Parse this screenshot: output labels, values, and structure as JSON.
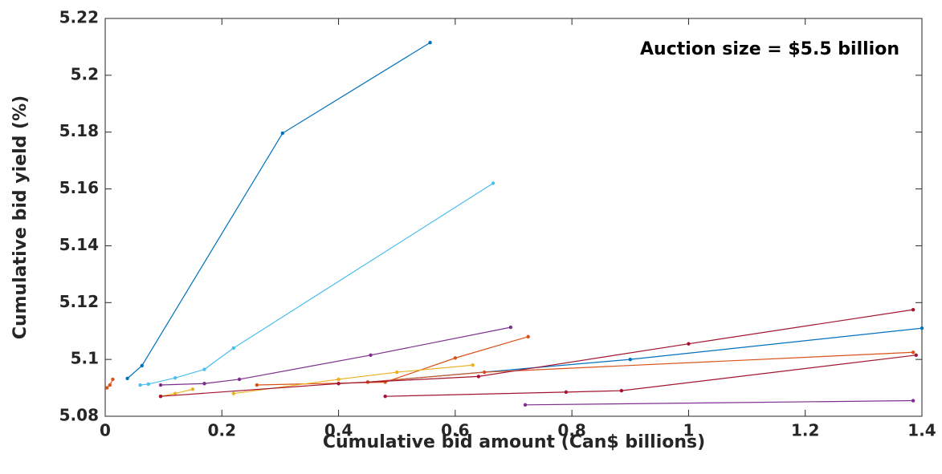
{
  "chart_data": {
    "type": "line",
    "annotation": "Auction size = $5.5 billion",
    "x_label": "Cumulative bid amount (Can$ billions)",
    "y_label": "Cumulative bid yield (%)",
    "xlim": [
      0,
      1.4
    ],
    "xticks": [
      0,
      0.2,
      0.4,
      0.6,
      0.8,
      1,
      1.2,
      1.4
    ],
    "ylim": [
      5.08,
      5.22
    ],
    "yticks": [
      5.08,
      5.1,
      5.12,
      5.14,
      5.16,
      5.18,
      5.2,
      5.22
    ],
    "series": [
      {
        "color": "#0072BD",
        "x": [
          0.038,
          0.063,
          0.304,
          0.557
        ],
        "values": [
          5.0933,
          5.0978,
          5.1796,
          5.2115
        ]
      },
      {
        "color": "#4DBEEE",
        "x": [
          0.06,
          0.074,
          0.12,
          0.17,
          0.22,
          0.665
        ],
        "values": [
          5.091,
          5.0913,
          5.0935,
          5.0965,
          5.104,
          5.162
        ]
      },
      {
        "color": "#7E2F8E",
        "x": [
          0.095,
          0.17,
          0.23,
          0.455,
          0.695
        ],
        "values": [
          5.091,
          5.0915,
          5.093,
          5.1015,
          5.1113
        ]
      },
      {
        "color": "#D95319",
        "x": [
          0.26,
          0.48,
          0.6,
          0.725
        ],
        "values": [
          5.091,
          5.092,
          5.1005,
          5.108
        ]
      },
      {
        "color": "#D95319",
        "x": [
          0.003,
          0.008,
          0.013
        ],
        "values": [
          5.09,
          5.091,
          5.093
        ]
      },
      {
        "color": "#EDB120",
        "x": [
          0.095,
          0.12,
          0.15
        ],
        "values": [
          5.087,
          5.088,
          5.0895
        ]
      },
      {
        "color": "#EDB120",
        "x": [
          0.22,
          0.4,
          0.5,
          0.63
        ],
        "values": [
          5.088,
          5.093,
          5.0955,
          5.098
        ]
      },
      {
        "color": "#0072BD",
        "x": [
          0.45,
          0.9,
          1.4
        ],
        "values": [
          5.092,
          5.1,
          5.111
        ]
      },
      {
        "color": "#D95319",
        "x": [
          0.45,
          0.65,
          1.385
        ],
        "values": [
          5.092,
          5.0955,
          5.1025
        ]
      },
      {
        "color": "#A2142F",
        "x": [
          0.095,
          0.4,
          0.64,
          1.0,
          1.385
        ],
        "values": [
          5.087,
          5.0915,
          5.094,
          5.1055,
          5.1175
        ]
      },
      {
        "color": "#A2142F",
        "x": [
          0.48,
          0.79,
          0.885,
          1.39
        ],
        "values": [
          5.087,
          5.0885,
          5.089,
          5.1015
        ]
      },
      {
        "color": "#7E2F8E",
        "x": [
          0.72,
          1.385
        ],
        "values": [
          5.084,
          5.0855
        ]
      }
    ]
  }
}
